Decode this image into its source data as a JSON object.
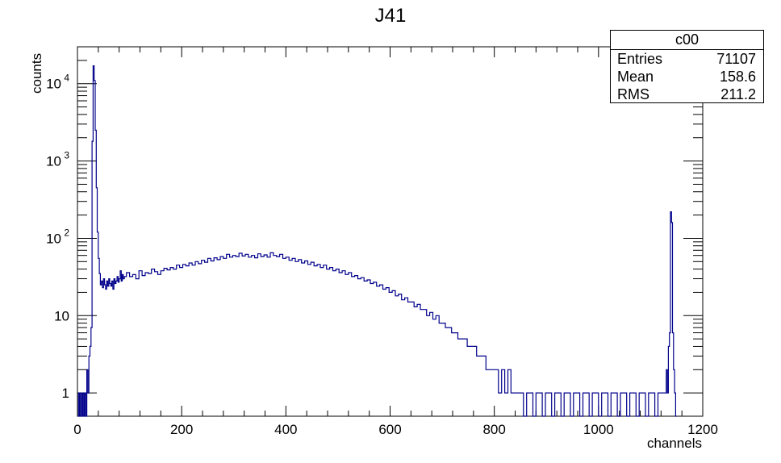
{
  "chart_data": {
    "type": "histogram",
    "title": "J41",
    "xlabel": "channels",
    "ylabel": "counts",
    "xlim": [
      0,
      1200
    ],
    "ylim": [
      0.5,
      30000
    ],
    "yscale": "log",
    "xticks": [
      "0",
      "200",
      "400",
      "600",
      "800",
      "1000",
      "1200"
    ],
    "yticks": [
      {
        "value": 1,
        "label": "1"
      },
      {
        "value": 10,
        "label": "10"
      },
      {
        "value": 100,
        "label": "10",
        "exp": "2"
      },
      {
        "value": 1000,
        "label": "10",
        "exp": "3"
      },
      {
        "value": 10000,
        "label": "10",
        "exp": "4"
      }
    ],
    "line_color": "#00008b",
    "stats_box": {
      "name": "c00",
      "entries_label": "Entries",
      "entries": "71107",
      "mean_label": "Mean",
      "mean": "158.6",
      "rms_label": "RMS",
      "rms": "211.2"
    },
    "series": [
      {
        "bin_width": 2,
        "points": [
          [
            0,
            0
          ],
          [
            2,
            1
          ],
          [
            4,
            0
          ],
          [
            6,
            1
          ],
          [
            8,
            0
          ],
          [
            10,
            1
          ],
          [
            12,
            0
          ],
          [
            14,
            1
          ],
          [
            16,
            0
          ],
          [
            18,
            2
          ],
          [
            20,
            1
          ],
          [
            22,
            3
          ],
          [
            24,
            4
          ],
          [
            26,
            7
          ],
          [
            28,
            1800
          ],
          [
            30,
            17000
          ],
          [
            32,
            11000
          ],
          [
            34,
            2500
          ],
          [
            36,
            450
          ],
          [
            38,
            120
          ],
          [
            40,
            55
          ],
          [
            42,
            35
          ],
          [
            44,
            25
          ],
          [
            46,
            28
          ],
          [
            48,
            23
          ],
          [
            50,
            30
          ],
          [
            52,
            25
          ],
          [
            54,
            22
          ],
          [
            56,
            28
          ],
          [
            58,
            24
          ],
          [
            60,
            30
          ],
          [
            62,
            26
          ],
          [
            64,
            24
          ],
          [
            66,
            28
          ],
          [
            68,
            22
          ],
          [
            70,
            30
          ],
          [
            72,
            26
          ],
          [
            74,
            28
          ],
          [
            76,
            32
          ],
          [
            78,
            27
          ],
          [
            80,
            30
          ],
          [
            82,
            38
          ],
          [
            84,
            28
          ],
          [
            86,
            34
          ],
          [
            88,
            30
          ],
          [
            90,
            32
          ],
          [
            94,
            36
          ],
          [
            100,
            32
          ],
          [
            106,
            34
          ],
          [
            112,
            30
          ],
          [
            118,
            38
          ],
          [
            124,
            33
          ],
          [
            130,
            36
          ],
          [
            136,
            35
          ],
          [
            142,
            40
          ],
          [
            148,
            37
          ],
          [
            154,
            34
          ],
          [
            160,
            38
          ],
          [
            166,
            41
          ],
          [
            172,
            39
          ],
          [
            178,
            42
          ],
          [
            184,
            40
          ],
          [
            190,
            45
          ],
          [
            196,
            42
          ],
          [
            202,
            46
          ],
          [
            208,
            44
          ],
          [
            214,
            48
          ],
          [
            220,
            45
          ],
          [
            226,
            50
          ],
          [
            232,
            47
          ],
          [
            238,
            52
          ],
          [
            244,
            49
          ],
          [
            250,
            55
          ],
          [
            256,
            51
          ],
          [
            262,
            56
          ],
          [
            268,
            53
          ],
          [
            274,
            58
          ],
          [
            280,
            55
          ],
          [
            286,
            62
          ],
          [
            292,
            57
          ],
          [
            298,
            60
          ],
          [
            304,
            58
          ],
          [
            310,
            64
          ],
          [
            316,
            59
          ],
          [
            322,
            62
          ],
          [
            328,
            57
          ],
          [
            334,
            60
          ],
          [
            340,
            56
          ],
          [
            346,
            63
          ],
          [
            352,
            58
          ],
          [
            358,
            61
          ],
          [
            364,
            57
          ],
          [
            370,
            65
          ],
          [
            376,
            60
          ],
          [
            382,
            58
          ],
          [
            388,
            62
          ],
          [
            394,
            55
          ],
          [
            400,
            57
          ],
          [
            406,
            52
          ],
          [
            412,
            55
          ],
          [
            418,
            50
          ],
          [
            424,
            53
          ],
          [
            430,
            48
          ],
          [
            436,
            51
          ],
          [
            442,
            46
          ],
          [
            448,
            49
          ],
          [
            454,
            44
          ],
          [
            460,
            46
          ],
          [
            466,
            42
          ],
          [
            472,
            45
          ],
          [
            478,
            40
          ],
          [
            484,
            42
          ],
          [
            490,
            38
          ],
          [
            496,
            40
          ],
          [
            502,
            36
          ],
          [
            508,
            38
          ],
          [
            514,
            34
          ],
          [
            520,
            36
          ],
          [
            526,
            32
          ],
          [
            532,
            33
          ],
          [
            538,
            30
          ],
          [
            544,
            31
          ],
          [
            550,
            28
          ],
          [
            556,
            29
          ],
          [
            562,
            26
          ],
          [
            568,
            27
          ],
          [
            574,
            24
          ],
          [
            580,
            25
          ],
          [
            586,
            22
          ],
          [
            592,
            23
          ],
          [
            598,
            20
          ],
          [
            604,
            21
          ],
          [
            610,
            18
          ],
          [
            616,
            19
          ],
          [
            622,
            16
          ],
          [
            628,
            17
          ],
          [
            634,
            15
          ],
          [
            640,
            15
          ],
          [
            646,
            13
          ],
          [
            652,
            14
          ],
          [
            658,
            12
          ],
          [
            664,
            12
          ],
          [
            670,
            10
          ],
          [
            676,
            11
          ],
          [
            682,
            9
          ],
          [
            688,
            10
          ],
          [
            694,
            8
          ],
          [
            700,
            8
          ],
          [
            706,
            7
          ],
          [
            712,
            7
          ],
          [
            718,
            6
          ],
          [
            724,
            6
          ],
          [
            730,
            5
          ],
          [
            736,
            5
          ],
          [
            742,
            5
          ],
          [
            748,
            4
          ],
          [
            754,
            4
          ],
          [
            760,
            4
          ],
          [
            766,
            3
          ],
          [
            772,
            3
          ],
          [
            778,
            3
          ],
          [
            784,
            2
          ],
          [
            790,
            2
          ],
          [
            796,
            2
          ],
          [
            802,
            2
          ],
          [
            808,
            1
          ],
          [
            814,
            2
          ],
          [
            820,
            1
          ],
          [
            826,
            2
          ],
          [
            832,
            1
          ],
          [
            838,
            1
          ],
          [
            844,
            1
          ],
          [
            850,
            1
          ],
          [
            856,
            0
          ],
          [
            862,
            1
          ],
          [
            868,
            1
          ],
          [
            874,
            0
          ],
          [
            880,
            1
          ],
          [
            886,
            1
          ],
          [
            892,
            0
          ],
          [
            898,
            1
          ],
          [
            904,
            1
          ],
          [
            910,
            0
          ],
          [
            916,
            1
          ],
          [
            922,
            1
          ],
          [
            928,
            0
          ],
          [
            934,
            1
          ],
          [
            940,
            1
          ],
          [
            946,
            0
          ],
          [
            952,
            1
          ],
          [
            958,
            1
          ],
          [
            964,
            0
          ],
          [
            970,
            1
          ],
          [
            976,
            1
          ],
          [
            982,
            0
          ],
          [
            988,
            1
          ],
          [
            994,
            1
          ],
          [
            1000,
            0
          ],
          [
            1006,
            1
          ],
          [
            1012,
            1
          ],
          [
            1018,
            0
          ],
          [
            1024,
            1
          ],
          [
            1030,
            1
          ],
          [
            1036,
            0
          ],
          [
            1042,
            1
          ],
          [
            1048,
            1
          ],
          [
            1054,
            0
          ],
          [
            1060,
            1
          ],
          [
            1066,
            1
          ],
          [
            1072,
            0
          ],
          [
            1078,
            1
          ],
          [
            1084,
            1
          ],
          [
            1090,
            0
          ],
          [
            1096,
            1
          ],
          [
            1102,
            1
          ],
          [
            1108,
            0
          ],
          [
            1114,
            1
          ],
          [
            1120,
            1
          ],
          [
            1126,
            1
          ],
          [
            1130,
            2
          ],
          [
            1132,
            1
          ],
          [
            1134,
            4
          ],
          [
            1136,
            6
          ],
          [
            1138,
            220
          ],
          [
            1140,
            160
          ],
          [
            1142,
            6
          ],
          [
            1144,
            2
          ],
          [
            1146,
            1
          ],
          [
            1148,
            0
          ]
        ]
      }
    ]
  }
}
